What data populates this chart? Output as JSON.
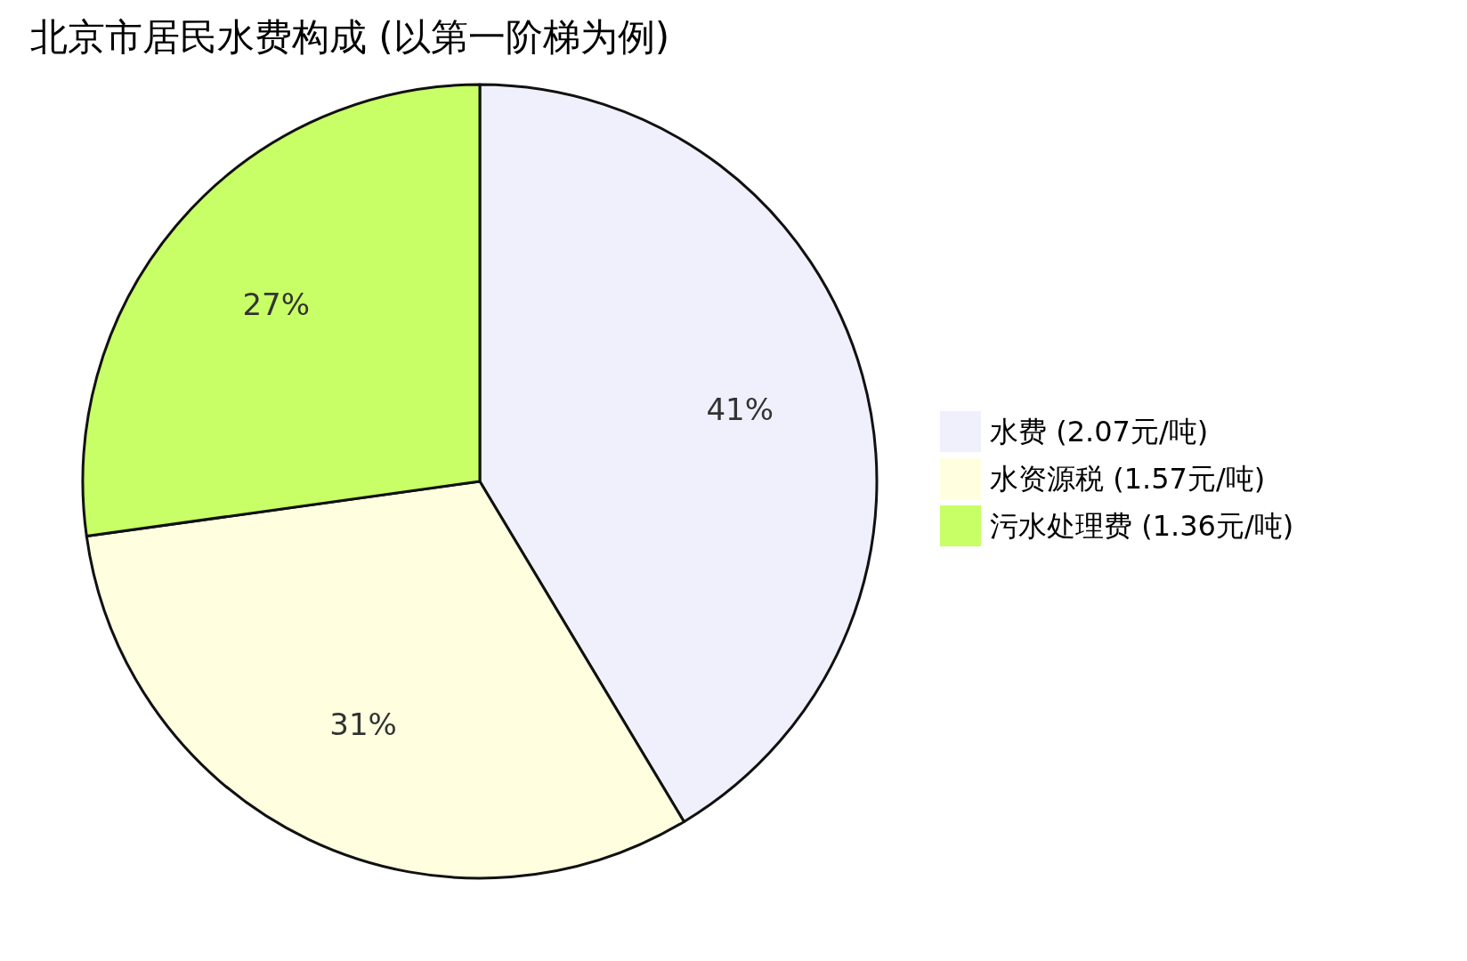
{
  "chart_data": {
    "type": "pie",
    "title": "北京市居民水费构成 (以第一阶梯为例)",
    "categories": [
      "水费 (2.07元/吨)",
      "水资源税 (1.57元/吨)",
      "污水处理费 (1.36元/吨)"
    ],
    "values": [
      41.4,
      31.4,
      27.2
    ],
    "value_labels": [
      "41%",
      "31%",
      "27%"
    ],
    "colors": [
      "#f0f0fc",
      "#ffffe0",
      "#c8ff66"
    ],
    "legend": "right"
  }
}
